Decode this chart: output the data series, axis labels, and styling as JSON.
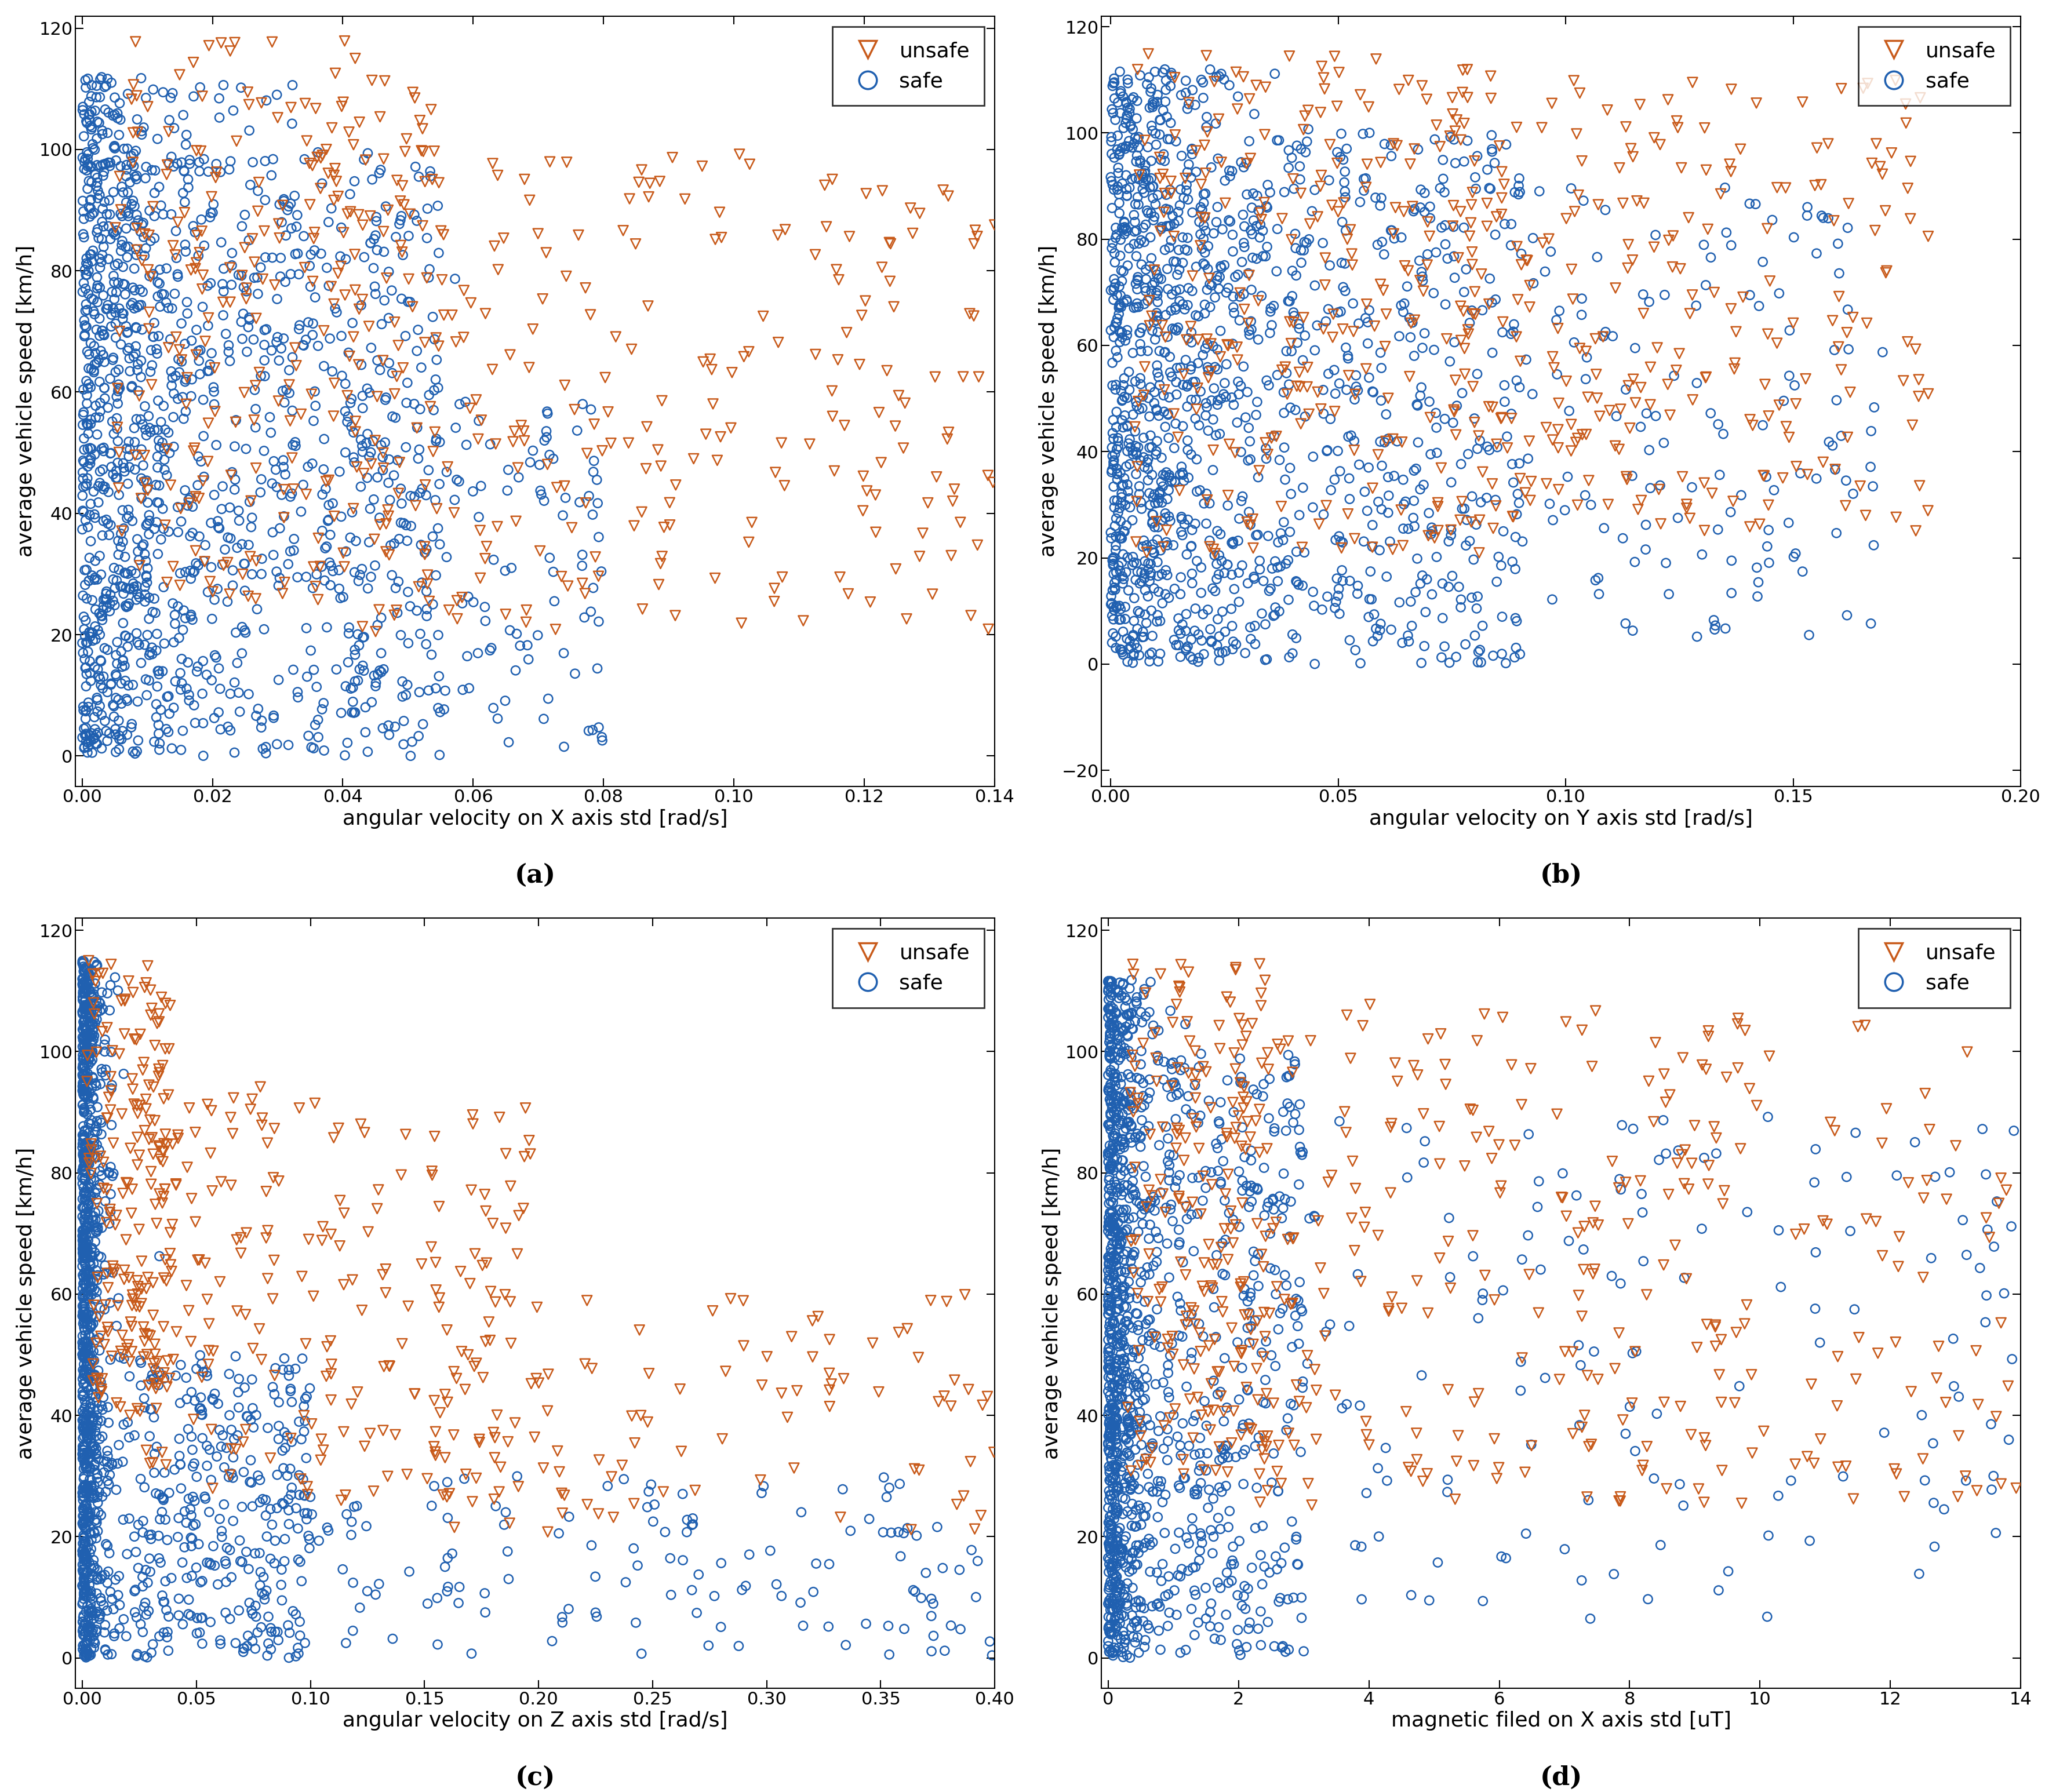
{
  "subplots": [
    {
      "xlabel": "angular velocity on X axis std [rad/s]",
      "ylabel": "average vehicle speed [km/h]",
      "label": "(a)",
      "xlim": [
        -0.001,
        0.14
      ],
      "ylim": [
        -5,
        122
      ],
      "xticks": [
        0,
        0.02,
        0.04,
        0.06,
        0.08,
        0.1,
        0.12,
        0.14
      ],
      "yticks": [
        0,
        20,
        40,
        60,
        80,
        100,
        120
      ]
    },
    {
      "xlabel": "angular velocity on Y axis std [rad/s]",
      "ylabel": "average vehicle speed [km/h]",
      "label": "(b)",
      "xlim": [
        -0.002,
        0.2
      ],
      "ylim": [
        -23,
        122
      ],
      "xticks": [
        0,
        0.05,
        0.1,
        0.15,
        0.2
      ],
      "yticks": [
        -20,
        0,
        20,
        40,
        60,
        80,
        100,
        120
      ]
    },
    {
      "xlabel": "angular velocity on Z axis std [rad/s]",
      "ylabel": "average vehicle speed [km/h]",
      "label": "(c)",
      "xlim": [
        -0.003,
        0.4
      ],
      "ylim": [
        -5,
        122
      ],
      "xticks": [
        0,
        0.05,
        0.1,
        0.15,
        0.2,
        0.25,
        0.3,
        0.35,
        0.4
      ],
      "yticks": [
        0,
        20,
        40,
        60,
        80,
        100,
        120
      ]
    },
    {
      "xlabel": "magnetic filed on X axis std [uT]",
      "ylabel": "average vehicle speed [km/h]",
      "label": "(d)",
      "xlim": [
        -0.1,
        14
      ],
      "ylim": [
        -5,
        122
      ],
      "xticks": [
        0,
        2,
        4,
        6,
        8,
        10,
        12,
        14
      ],
      "yticks": [
        0,
        20,
        40,
        60,
        80,
        100,
        120
      ]
    }
  ],
  "unsafe_color": "#C85A1A",
  "safe_color": "#2060B0",
  "marker_size_safe": 120,
  "marker_size_unsafe": 150,
  "linewidth_marker": 1.8,
  "alpha": 1.0,
  "n_safe": 1500,
  "n_unsafe": 500,
  "xlabel_fontsize": 26,
  "ylabel_fontsize": 26,
  "tick_fontsize": 22,
  "legend_fontsize": 26,
  "label_fontsize": 32
}
